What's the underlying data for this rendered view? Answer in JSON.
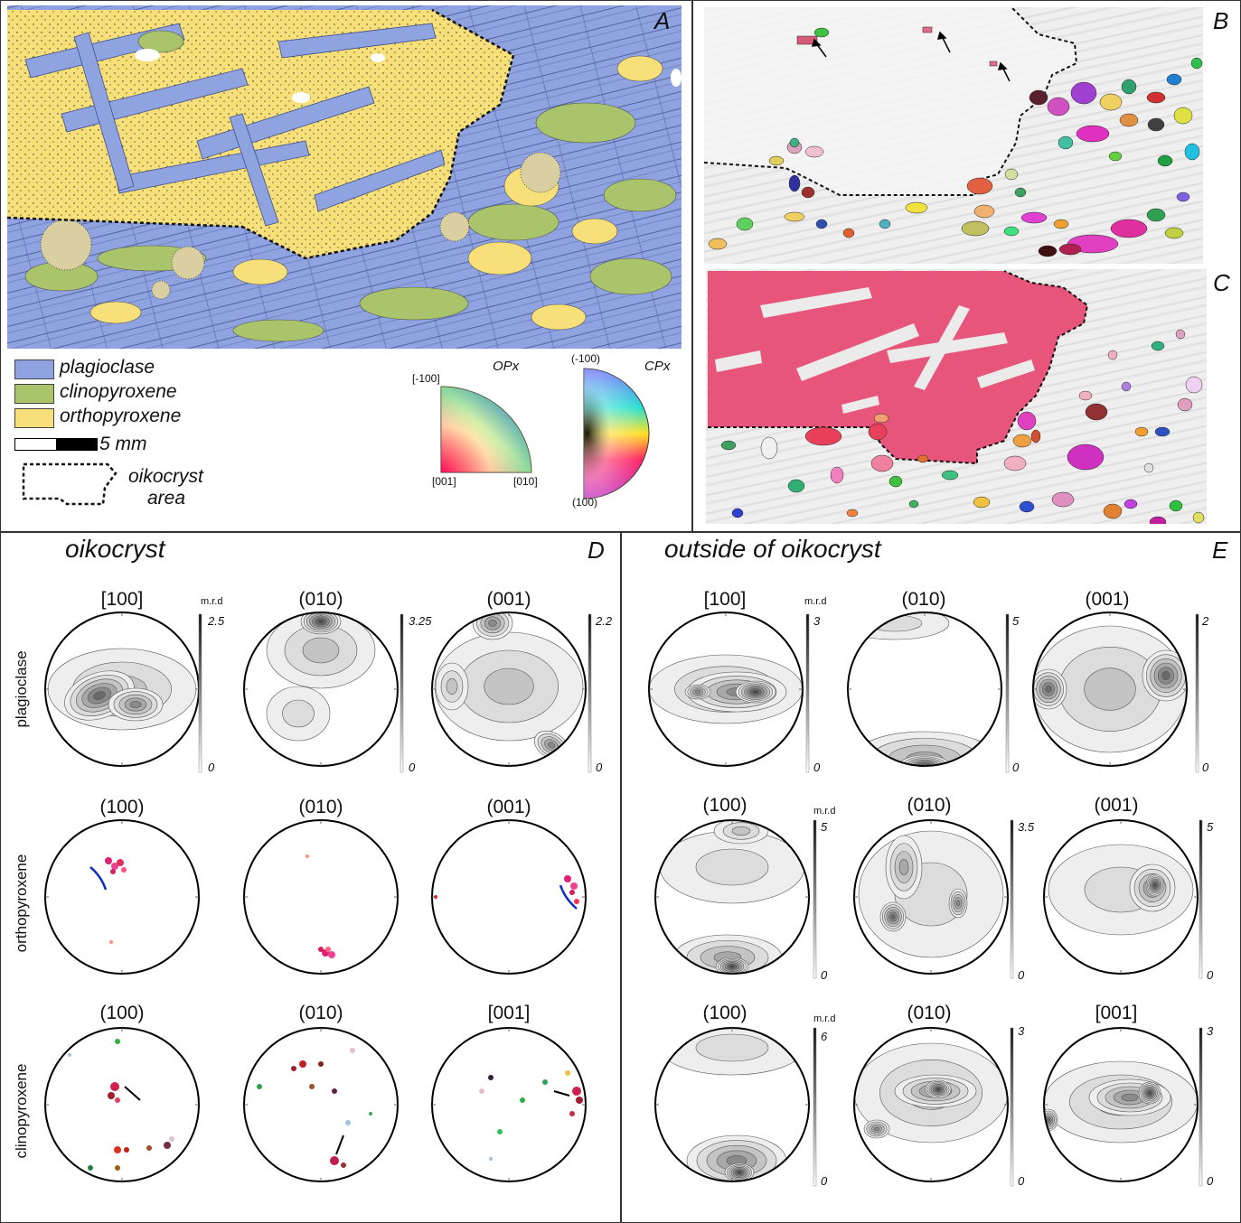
{
  "panels": {
    "A": "A",
    "B": "B",
    "C": "C",
    "D": "D",
    "E": "E"
  },
  "legend": {
    "plagioclase": "plagioclase",
    "clinopyroxene": "clinopyroxene",
    "orthopyroxene": "orthopyroxene",
    "scale": "5 mm",
    "area_l1": "oikocryst",
    "area_l2": "area",
    "colors": {
      "plagioclase": "#8fa3e0",
      "clinopyroxene": "#a9c46a",
      "orthopyroxene": "#f7e07a"
    }
  },
  "ipf": {
    "opx_title": "OPx",
    "opx_top": "[-100]",
    "opx_bl": "[001]",
    "opx_br": "[010]",
    "cpx_title": "CPx",
    "cpx_top": "(-100)",
    "cpx_bottom": "(100)"
  },
  "headers": {
    "d": "oikocryst",
    "e": "outside of oikocryst"
  },
  "rows": {
    "plag": "plagioclase",
    "opx": "orthopyroxene",
    "cpx": "clinopyroxene"
  },
  "mrd": "m.r.d",
  "d": {
    "r1": {
      "a": "[100]",
      "b": "(010)",
      "c": "(001)",
      "sa": "2.5",
      "sb": "3.25",
      "sc": "2.2",
      "z": "0"
    },
    "r2": {
      "a": "(100)",
      "b": "(010)",
      "c": "(001)"
    },
    "r3": {
      "a": "(100)",
      "b": "(010)",
      "c": "[001]"
    }
  },
  "e": {
    "r1": {
      "a": "[100]",
      "b": "(010)",
      "c": "(001)",
      "sa": "3",
      "sb": "5",
      "sc": "2",
      "z": "0"
    },
    "r2": {
      "a": "(100)",
      "b": "(010)",
      "c": "(001)",
      "sa": "5",
      "sb": "3.5",
      "sc": "5",
      "z": "0"
    },
    "r3": {
      "a": "(100)",
      "b": "(010)",
      "c": "[001]",
      "sa": "6",
      "sb": "3",
      "sc": "3",
      "z": "0"
    }
  }
}
